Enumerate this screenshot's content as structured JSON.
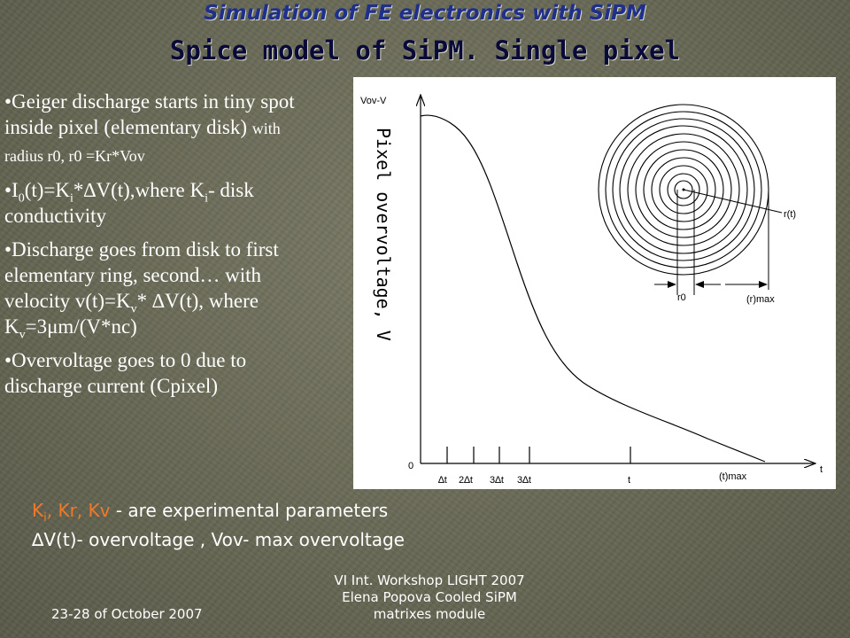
{
  "title": "Simulation of FE electronics with SiPM",
  "subtitle": "Spice model of SiPM. Single pixel",
  "bullets": {
    "b1_line1": "•Geiger discharge starts in tiny spot",
    "b1_line2a": "inside pixel (elementary disk) ",
    "b1_line2b": "with",
    "b1_line3": "radius r0, r0 =Kr*Vov",
    "b2_a": "•I",
    "b2_sub1": "0",
    "b2_b": "(t)=K",
    "b2_sub2": "i",
    "b2_c": "*∆V(t),where K",
    "b2_sub3": "i",
    "b2_d": "- disk",
    "b2_line2": "conductivity",
    "b3_line1": "•Discharge goes from disk to first",
    "b3_line2": "elementary ring, second… with",
    "b3_line3a": "velocity v(t)=K",
    "b3_sub1": "v",
    "b3_line3b": "* ∆V(t), where",
    "b3_line4a": "K",
    "b3_sub2": "v",
    "b3_line4b": "=3μm/(V*nc)",
    "b4_line1": "•Overvoltage goes to 0 due to",
    "b4_line2": "discharge current (Cpixel)"
  },
  "figure": {
    "y_axis_label": "Pixel overvoltage, V",
    "y_top_label": "Vov-V",
    "x_axis_end_label": "t",
    "origin_label": "0",
    "tick_labels": [
      "∆t",
      "2∆t",
      "3∆t",
      "3∆t",
      "t",
      "(t)max"
    ],
    "rt_label": "r(t)",
    "r0_label": "r0",
    "rmax_label": "(r)max"
  },
  "footnotes": {
    "line1_k1": "K",
    "line1_k1_sub": "i",
    "line1_k2": ", Kr, Kv",
    "line1_rest": " - are experimental parameters",
    "line2": "∆V(t)- overvoltage , Vov- max overvoltage"
  },
  "footer": {
    "date": "23-28 of October 2007",
    "workshop_line1": "VI Int. Workshop LIGHT 2007",
    "workshop_line2": "Elena Popova Cooled SiPM",
    "workshop_line3": "matrixes module"
  },
  "colors": {
    "title": "#1f2f8c",
    "subtitle": "#0a0a3a",
    "body_text": "#ffffff",
    "accent": "#f07a2a",
    "background": "#6b6b58"
  }
}
